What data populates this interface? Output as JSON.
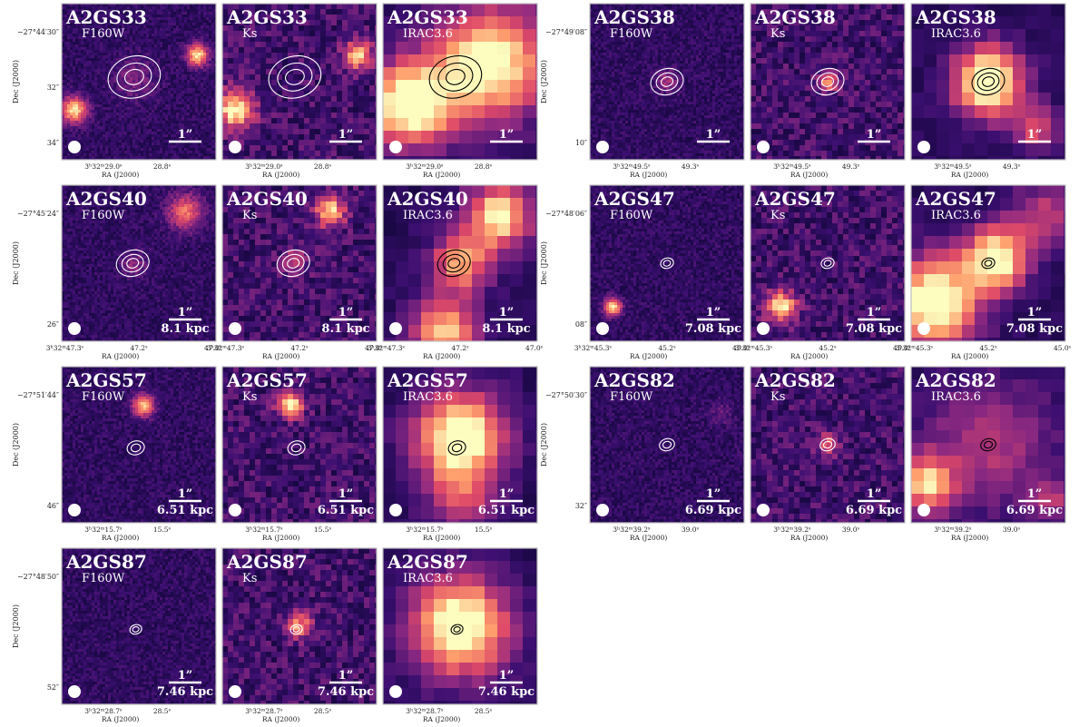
{
  "figure": {
    "ra_axis_label": "RA (J2000)",
    "dec_axis_label": "Dec (J2000)",
    "scale_bar_label": "1”",
    "colors": {
      "bg": "#0a0430",
      "low": "#3b0f70",
      "mid": "#8c2981",
      "high": "#de4968",
      "bright": "#fe9f6d",
      "peak": "#fcfdbf",
      "contour_white": "#ffffff",
      "contour_black": "#000000",
      "frame": "#bfbfbf"
    }
  },
  "rows": [
    {
      "id": "A2GS33",
      "bands": [
        "F160W",
        "Ks",
        "IRAC3.6"
      ],
      "dec_ticks": [
        "−27°44′30″",
        "32″",
        "34″"
      ],
      "ra_ticks": [
        "3h32m29.0s",
        "28.8s"
      ],
      "kpc": ""
    },
    {
      "id": "A2GS38",
      "bands": [
        "F160W",
        "Ks",
        "IRAC3.6"
      ],
      "dec_ticks": [
        "−27°49′08″",
        "10″"
      ],
      "ra_ticks": [
        "3h32m49.5s",
        "49.3s"
      ],
      "kpc": ""
    },
    {
      "id": "A2GS40",
      "bands": [
        "F160W",
        "Ks",
        "IRAC3.6"
      ],
      "dec_ticks": [
        "−27°45′24″",
        "26″"
      ],
      "ra_ticks": [
        "3h32m47.3s",
        "47.2s",
        "47.0s"
      ],
      "kpc": "8.1 kpc"
    },
    {
      "id": "A2GS47",
      "bands": [
        "F160W",
        "Ks",
        "IRAC3.6"
      ],
      "dec_ticks": [
        "−27°48′06″",
        "08″"
      ],
      "ra_ticks": [
        "3h32m45.3s",
        "45.2s",
        "45.0s"
      ],
      "kpc": "7.08 kpc"
    },
    {
      "id": "A2GS57",
      "bands": [
        "F160W",
        "Ks",
        "IRAC3.6"
      ],
      "dec_ticks": [
        "−27°51′44″",
        "46″"
      ],
      "ra_ticks": [
        "3h32m15.7s",
        "15.5s"
      ],
      "kpc": "6.51 kpc"
    },
    {
      "id": "A2GS82",
      "bands": [
        "F160W",
        "Ks",
        "IRAC3.6"
      ],
      "dec_ticks": [
        "−27°50′30″",
        "32″"
      ],
      "ra_ticks": [
        "3h32m39.2s",
        "39.0s"
      ],
      "kpc": "6.69 kpc"
    },
    {
      "id": "A2GS87",
      "bands": [
        "F160W",
        "Ks",
        "IRAC3.6"
      ],
      "dec_ticks": [
        "−27°48′50″",
        "52″"
      ],
      "ra_ticks": [
        "3h32m28.7s",
        "28.5s"
      ],
      "kpc": "7.46 kpc"
    }
  ]
}
